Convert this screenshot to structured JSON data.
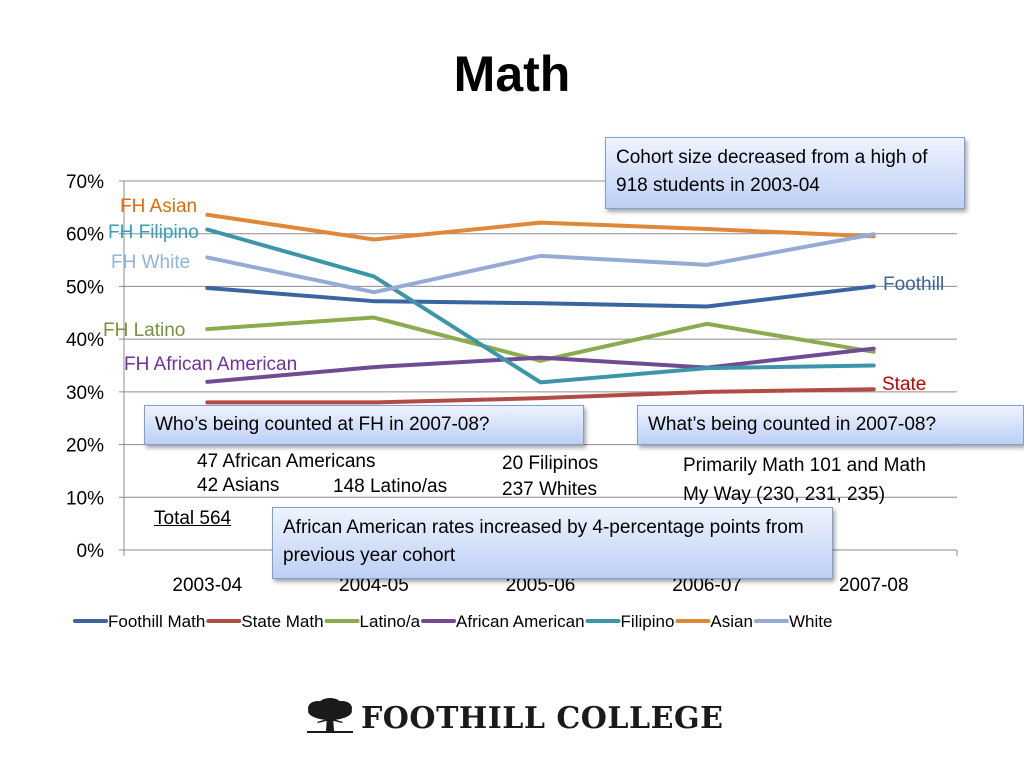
{
  "slide": {
    "title": "Math"
  },
  "chart_data": {
    "type": "line",
    "categories": [
      "2003-04",
      "2004-05",
      "2005-06",
      "2006-07",
      "2007-08"
    ],
    "ylim": [
      0,
      70
    ],
    "yticks": [
      0,
      10,
      20,
      30,
      40,
      50,
      60,
      70
    ],
    "ytick_labels": [
      "0%",
      "10%",
      "20%",
      "30%",
      "40%",
      "50%",
      "60%",
      "70%"
    ],
    "grid": true,
    "legend_position": "bottom",
    "series": [
      {
        "name": "Foothill Math",
        "color": "#3a659f",
        "values": [
          49.7,
          47.2,
          46.8,
          46.2,
          50.0
        ],
        "label": "Foothill",
        "label_color": "#3a659f"
      },
      {
        "name": "State Math",
        "color": "#b24a45",
        "values": [
          28.0,
          28.0,
          28.8,
          30.0,
          30.5
        ],
        "label": "State",
        "label_color": "#c00000"
      },
      {
        "name": "Latino/a",
        "color": "#8daa4e",
        "values": [
          41.9,
          44.1,
          35.9,
          42.9,
          37.6
        ],
        "label": "FH Latino",
        "label_color": "#76923c"
      },
      {
        "name": "African American",
        "color": "#6e4b93",
        "values": [
          31.9,
          34.7,
          36.5,
          34.6,
          38.2
        ],
        "label": "FH African American",
        "label_color": "#7030a0"
      },
      {
        "name": "Filipino",
        "color": "#3c96a8",
        "values": [
          60.8,
          51.9,
          31.8,
          34.5,
          35.0
        ],
        "label": "FH Filipino",
        "label_color": "#31a0c0"
      },
      {
        "name": "Asian",
        "color": "#e0883a",
        "values": [
          63.6,
          58.9,
          62.1,
          60.9,
          59.5
        ],
        "label": "FH Asian",
        "label_color": "#e36c09"
      },
      {
        "name": "White",
        "color": "#96abd3",
        "values": [
          55.5,
          48.9,
          55.8,
          54.1,
          59.9
        ],
        "label": "FH White",
        "label_color": "#8eb4e3"
      }
    ]
  },
  "callouts": {
    "cohort": "Cohort size decreased from a high of 918 students in 2003-04",
    "who": "Who’s being counted at FH in 2007-08?",
    "what": "What’s being counted in 2007-08?",
    "african_american": "African American rates increased by 4-percentage points from previous year cohort"
  },
  "counts": {
    "african_americans": "47 African Americans",
    "asians": "42 Asians",
    "latinos": "148 Latino/as",
    "filipinos": "20 Filipinos",
    "whites": "237 Whites",
    "total": "Total 564"
  },
  "courses": {
    "line1": "Primarily Math 101 and Math",
    "line2": "My Way (230, 231, 235)"
  },
  "logo": {
    "text": "FOOTHILL COLLEGE",
    "icon": "oak-tree-icon"
  }
}
